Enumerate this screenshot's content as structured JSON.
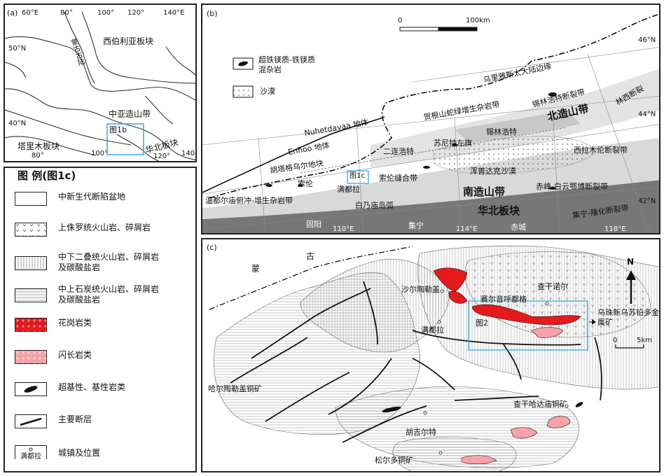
{
  "panel_a": {
    "tag": "(a)",
    "labels": [
      "60°E",
      "80°",
      "100°",
      "120°",
      "140°E",
      "50°N",
      "40°N",
      "西伯利亚板块",
      "蒙古古陆",
      "中亚造山带",
      "图1b",
      "塔里木板块",
      "华北板块",
      "100°",
      "80°",
      "120°",
      "140°"
    ]
  },
  "legend": {
    "title": "图 例(图1c)",
    "items": [
      {
        "label": "中新生代断陷盆地"
      },
      {
        "label": "上侏罗统火山岩、碎屑岩"
      },
      {
        "label": "中下二叠统火山岩、碎屑岩及碳酸盐岩"
      },
      {
        "label": "中上石炭统火山岩、碎屑岩及碳酸盐岩"
      },
      {
        "label": "花岗岩类"
      },
      {
        "label": "闪长岩类"
      },
      {
        "label": "超基性、基性岩类"
      },
      {
        "label": "主要断层"
      },
      {
        "label": "城镇及位置"
      }
    ],
    "town_sample": "满都拉",
    "colors": {
      "granite": "#e41a1c",
      "diorite": "#f4a3a8"
    }
  },
  "panel_b": {
    "tag": "(b)",
    "scale": {
      "zero": "0",
      "end": "100km"
    },
    "legend": [
      "超铁镁质-铁镁质混杂岩",
      "沙漠"
    ],
    "labels": [
      "46°N",
      "44°N",
      "42°N",
      "乌里雅斯太大陆边缘",
      "锡林浩特断裂带",
      "贺根山蛇绿增生杂岩带",
      "林西断裂",
      "北造山带",
      "锡林浩特",
      "Nuhetdavaa 地体",
      "Enhoo 地体",
      "二连浩特",
      "苏尼特左旗",
      "胡塔格乌尔地块",
      "图1c",
      "索伦缝合带",
      "浑善达克沙漠",
      "西拉木伦断裂带",
      "索伦",
      "满都拉",
      "南造山带",
      "赤峰-白云鄂博断裂带",
      "温都尔庙俯冲-增生杂岩带",
      "白乃庙岛弧",
      "华北板块",
      "集宁-隆化断裂带",
      "固阳",
      "110°E",
      "集宁",
      "114°E",
      "赤城",
      "118°E"
    ]
  },
  "panel_c": {
    "tag": "(c)",
    "labels": [
      "古",
      "蒙",
      "沙尔陶勒盖",
      "查干诺尔",
      "赛尔音呼都格",
      "满都拉",
      "图2",
      "乌珠新乌苏铅多金属矿",
      "哈尔陶勒盖铜矿",
      "查干哈达庙铜矿",
      "胡吉尔特",
      "松尔多铜矿"
    ],
    "north": "N",
    "scale": {
      "zero": "0",
      "end": "5km"
    }
  }
}
